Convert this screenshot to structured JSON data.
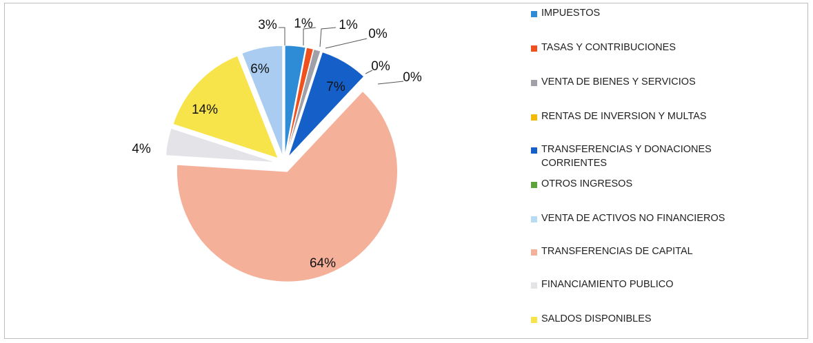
{
  "chart_data": {
    "type": "pie",
    "categories": [
      "IMPUESTOS",
      "TASAS Y CONTRIBUCIONES",
      "VENTA DE BIENES Y SERVICIOS",
      "RENTAS DE INVERSION Y MULTAS",
      "TRANSFERENCIAS Y DONACIONES CORRIENTES",
      "OTROS INGRESOS",
      "VENTA DE ACTIVOS NO FINANCIEROS",
      "TRANSFERENCIAS DE CAPITAL",
      "FINANCIAMIENTO PUBLICO",
      "SALDOS DISPONIBLES",
      null
    ],
    "values": [
      3,
      1,
      1,
      0,
      7,
      0,
      0,
      64,
      4,
      14,
      6
    ],
    "value_labels": [
      "3%",
      "1%",
      "1%",
      "0%",
      "7%",
      "0%",
      "0%",
      "64%",
      "4%",
      "14%",
      "6%"
    ],
    "colors": [
      "#2e8bd6",
      "#f0501e",
      "#a0a0a8",
      "#f5b800",
      "#1560c8",
      "#5ea23a",
      "#b8dcf4",
      "#f5b09a",
      "#e3e3e8",
      "#f7e34a",
      "#a9ccf0"
    ],
    "legend": "right"
  }
}
